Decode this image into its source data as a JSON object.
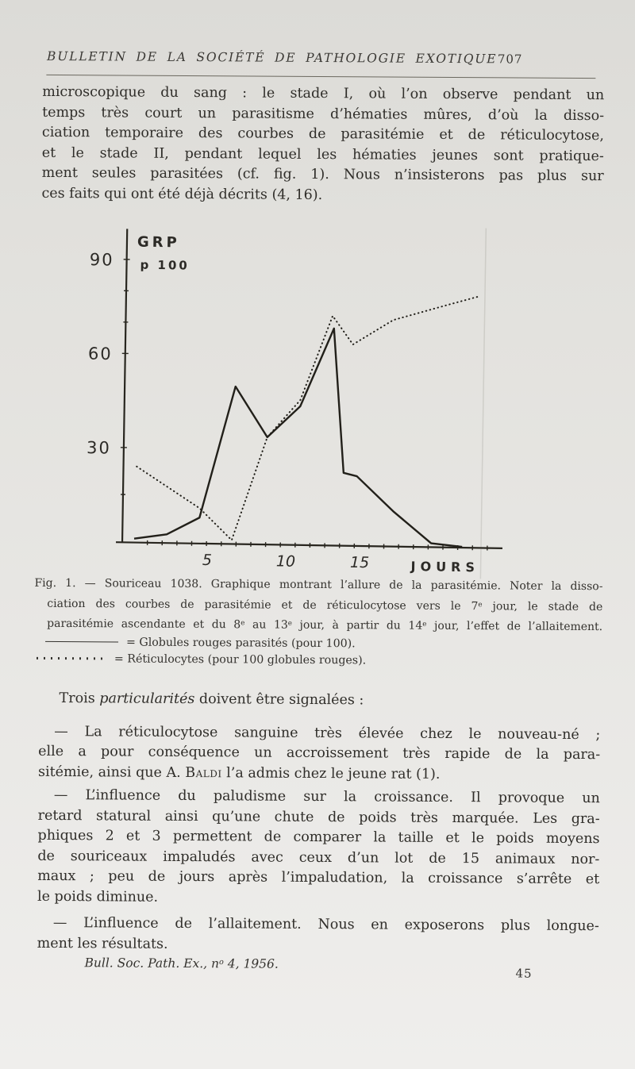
{
  "page_header": {
    "title": "BULLETIN DE LA SOCIÉTÉ DE PATHOLOGIE EXOTIQUE",
    "page_number": "707"
  },
  "intro_paragraph": {
    "lines": [
      "microscopique du sang : le stade I, où l’on observe pendant un",
      "temps très court un parasitisme d’hématies mûres, d’où la disso-",
      "ciation temporaire des courbes de parasitémie et de réticulocytose,",
      "et le stade II, pendant lequel les hématies jeunes sont pratique-",
      "ment seules parasitées (cf. fig. 1). Nous n’insisterons pas plus sur",
      "ces faits qui ont été déjà décrits (4, 16)."
    ]
  },
  "figure": {
    "caption_lines": [
      "Fig. 1. — Souriceau 1038. Graphique montrant l’allure de la parasitémie. Noter la disso-",
      {
        "parts": [
          {
            "t": "ciation des courbes de parasitémie et de réticulocytose vers le 7"
          },
          {
            "t": "e",
            "style": "sup"
          },
          {
            "t": " jour, le stade de"
          }
        ]
      },
      {
        "parts": [
          {
            "t": "parasitémie ascendante et du 8"
          },
          {
            "t": "e",
            "style": "sup"
          },
          {
            "t": " au 13"
          },
          {
            "t": "e",
            "style": "sup"
          },
          {
            "t": " jour, à partir du 14"
          },
          {
            "t": "e",
            "style": "sup"
          },
          {
            "t": " jour, l’effet de l’allaitement."
          }
        ]
      }
    ],
    "legend": [
      {
        "symbol": "solid-line",
        "label": "= Globules rouges parasités (pour 100)."
      },
      {
        "symbol": "dotted-line",
        "label": "= Réticulocytes (pour 100 globules rouges)."
      }
    ]
  },
  "body": {
    "heading": {
      "lines": [
        {
          "parts": [
            {
              "t": "Trois "
            },
            {
              "t": "particularités",
              "style": "italic"
            },
            {
              "t": " doivent être signalées :"
            }
          ]
        }
      ]
    },
    "para_reticulocytose": {
      "lines": [
        "— La réticulocytose sanguine très élevée chez le nouveau-né ;",
        "elle a pour conséquence un accroissement très rapide de la para-",
        {
          "parts": [
            {
              "t": "sitémie, ainsi que A. "
            },
            {
              "t": "Baldi",
              "style": "smallcaps"
            },
            {
              "t": " l’a admis chez le jeune rat (1)."
            }
          ]
        }
      ]
    },
    "para_croissance": {
      "lines": [
        "— L’influence du paludisme sur la croissance. Il provoque un",
        "retard statural ainsi qu’une chute de poids très marquée. Les gra-",
        "phiques 2 et 3 permettent de comparer la taille et le poids moyens",
        "de souriceaux impaludés avec ceux d’un lot de 15 animaux nor-",
        "maux ; peu de jours après l’impaludation, la croissance s’arrête et",
        "le poids diminue."
      ]
    },
    "para_allaitement": {
      "lines": [
        "— L’influence de l’allaitement. Nous en exposerons plus longue-",
        "ment les résultats."
      ]
    }
  },
  "footer": {
    "journal_ref_lines": [
      {
        "parts": [
          {
            "t": "Bull. Soc. Path. Ex., n"
          },
          {
            "t": "o",
            "style": "sup"
          },
          {
            "t": " 4, 1956."
          }
        ]
      }
    ],
    "signature_number": "45"
  },
  "chart_data": {
    "type": "line",
    "title": "",
    "xlabel": "JOURS",
    "ylabel_lines": [
      "GRP",
      "p 100"
    ],
    "xlim": [
      0,
      25
    ],
    "ylim": [
      0,
      100
    ],
    "grid": false,
    "x_tick_labels": [
      5,
      10,
      15
    ],
    "x_minor_ticks": [
      1,
      2,
      3,
      4,
      5,
      6,
      7,
      8,
      9,
      10,
      11,
      12,
      13,
      14,
      15,
      16,
      17,
      18,
      19,
      20,
      21,
      22,
      23,
      24
    ],
    "y_tick_labels": [
      90,
      60,
      30
    ],
    "y_minor_ticks": [
      15,
      70,
      80
    ],
    "ink_color": "#22201a",
    "series": [
      {
        "name": "Globules rouges parasités (pour 100)",
        "line_style": "solid",
        "points": [
          [
            0.1,
            1
          ],
          [
            2.3,
            2.5
          ],
          [
            4.5,
            8
          ],
          [
            6.8,
            50
          ],
          [
            9,
            34
          ],
          [
            11.2,
            44
          ],
          [
            13.4,
            69
          ],
          [
            14.2,
            23
          ],
          [
            15.1,
            22
          ],
          [
            17.6,
            11
          ],
          [
            20.2,
            1
          ],
          [
            22.3,
            0
          ]
        ]
      },
      {
        "name": "Réticulocytes (pour 100 globules rouges)",
        "line_style": "dotted",
        "points": [
          [
            0.2,
            24
          ],
          [
            4.5,
            11
          ],
          [
            6.7,
            1
          ],
          [
            9,
            34
          ],
          [
            11.2,
            46
          ],
          [
            13.3,
            73
          ],
          [
            14.7,
            64
          ],
          [
            17.4,
            72
          ],
          [
            21,
            77
          ],
          [
            23.2,
            80
          ]
        ]
      }
    ]
  }
}
